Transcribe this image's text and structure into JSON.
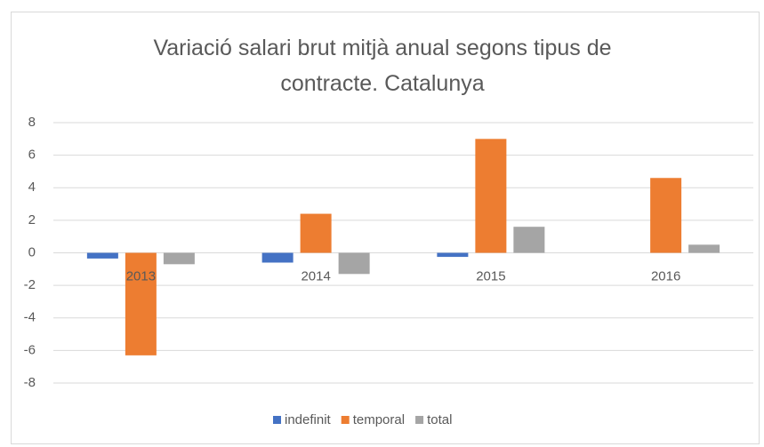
{
  "chart_data": {
    "type": "bar",
    "title": "Variació salari brut mitjà anual segons tipus de contracte. Catalunya",
    "categories": [
      "2013",
      "2014",
      "2015",
      "2016"
    ],
    "series": [
      {
        "name": "indefinit",
        "color": "#4472c4",
        "values": [
          -0.35,
          -0.6,
          -0.25,
          0
        ]
      },
      {
        "name": "temporal",
        "color": "#ed7d31",
        "values": [
          -6.3,
          2.4,
          7.0,
          4.6
        ]
      },
      {
        "name": "total",
        "color": "#a5a5a5",
        "values": [
          -0.7,
          -1.3,
          1.6,
          0.5
        ]
      }
    ],
    "ylim": [
      -8,
      8
    ],
    "yticks": [
      -8,
      -6,
      -4,
      -2,
      0,
      2,
      4,
      6,
      8
    ],
    "grid": true,
    "legend": "bottom"
  }
}
